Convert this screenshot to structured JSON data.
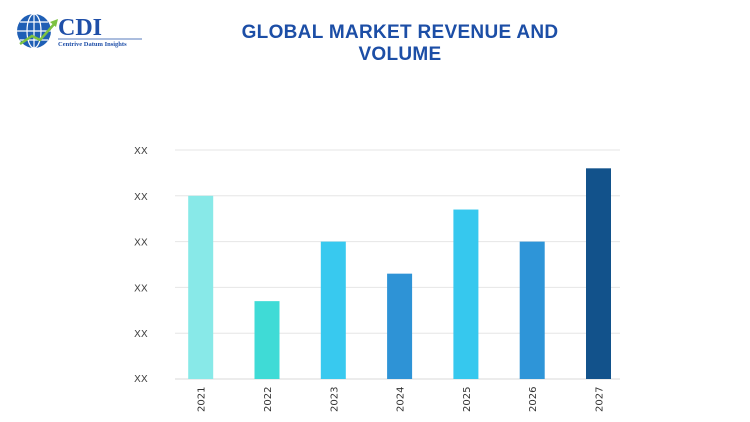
{
  "header": {
    "title": "GLOBAL MARKET REVENUE AND VOLUME"
  },
  "logo": {
    "text": "CDI",
    "tagline": "Centrive Datum Insights"
  },
  "chart_data": {
    "type": "bar",
    "title": "GLOBAL MARKET REVENUE AND VOLUME",
    "categories": [
      "2021",
      "2022",
      "2023",
      "2024",
      "2025",
      "2026",
      "2027"
    ],
    "values": [
      4.0,
      1.7,
      3.0,
      2.3,
      3.7,
      3.0,
      4.6
    ],
    "colors": [
      "#88e9e8",
      "#3fdbd6",
      "#38c9ef",
      "#2e93d6",
      "#36c8ee",
      "#2e95d8",
      "#12528b"
    ],
    "yticks": [
      "XX",
      "XX",
      "XX",
      "XX",
      "XX",
      "XX"
    ],
    "ylim": [
      0,
      5
    ],
    "grid": true,
    "xlabel": "",
    "ylabel": ""
  }
}
